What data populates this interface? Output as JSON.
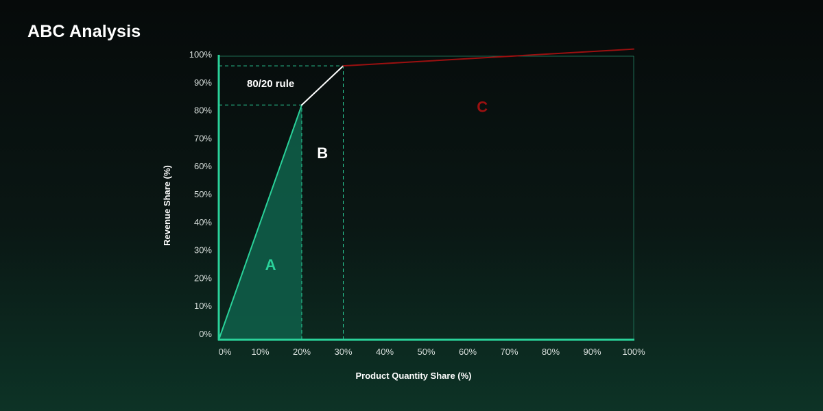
{
  "page": {
    "title": "ABC Analysis"
  },
  "colors": {
    "accent": "#2ad29a",
    "area_fill": "#0f5a46",
    "frame": "#1d6b52",
    "zone_c": "#9b1010",
    "curve_b": "#ffffff",
    "guide": "#2ad29a"
  },
  "chart_data": {
    "type": "line",
    "title": "ABC Analysis",
    "xlabel": "Product Quantity Share (%)",
    "ylabel": "Revenue Share (%)",
    "xlim": [
      0,
      100
    ],
    "ylim": [
      0,
      100
    ],
    "x_ticks": [
      0,
      10,
      20,
      30,
      40,
      50,
      60,
      70,
      80,
      90,
      100
    ],
    "x_tick_labels": [
      "0%",
      "10%",
      "20%",
      "30%",
      "40%",
      "50%",
      "60%",
      "70%",
      "80%",
      "90%",
      "100%"
    ],
    "y_ticks": [
      0,
      10,
      20,
      30,
      40,
      50,
      60,
      70,
      80,
      90,
      100
    ],
    "y_tick_labels": [
      "0%",
      "10%",
      "20%",
      "30%",
      "40%",
      "50%",
      "60%",
      "70%",
      "80%",
      "90%",
      "100%"
    ],
    "grid": false,
    "segments": [
      {
        "zone": "A",
        "points": [
          [
            0,
            0
          ],
          [
            20,
            84
          ]
        ]
      },
      {
        "zone": "B",
        "points": [
          [
            20,
            84
          ],
          [
            30,
            98
          ]
        ]
      },
      {
        "zone": "C",
        "points": [
          [
            30,
            98
          ],
          [
            100,
            104
          ]
        ]
      }
    ],
    "guides": [
      {
        "from": [
          0,
          84
        ],
        "to": [
          20,
          84
        ]
      },
      {
        "from": [
          20,
          0
        ],
        "to": [
          20,
          84
        ]
      },
      {
        "from": [
          0,
          98
        ],
        "to": [
          30,
          98
        ]
      },
      {
        "from": [
          30,
          0
        ],
        "to": [
          30,
          98
        ]
      }
    ],
    "zones": [
      {
        "label": "A",
        "x": 12.5,
        "y": 25
      },
      {
        "label": "B",
        "x": 25,
        "y": 65
      },
      {
        "label": "C",
        "x": 63.5,
        "y": 81.5
      }
    ],
    "annotations": [
      {
        "text": "80/20 rule",
        "x": 12.5,
        "y": 90.5
      }
    ]
  }
}
